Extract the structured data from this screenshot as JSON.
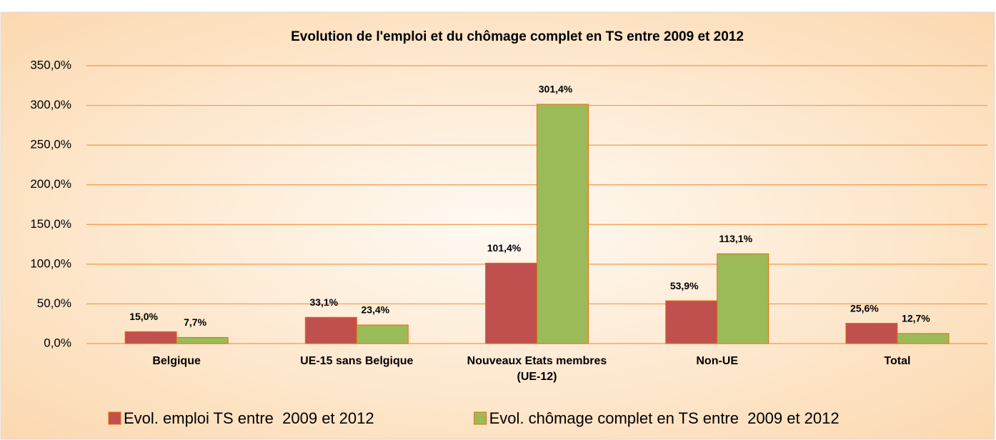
{
  "chart_data": {
    "type": "bar",
    "title": "Evolution de l'emploi et du chômage complet en TS entre 2009 et 2012",
    "categories": [
      "Belgique",
      "UE-15 sans Belgique",
      "Nouveaux Etats membres (UE-12)",
      "Non-UE",
      "Total"
    ],
    "series": [
      {
        "name": "Evol. emploi TS entre  2009 et 2012",
        "color": "#c0504d",
        "values": [
          15.0,
          33.1,
          101.4,
          53.9,
          25.6
        ],
        "value_labels": [
          "15,0%",
          "33,1%",
          "101,4%",
          "53,9%",
          "25,6%"
        ]
      },
      {
        "name": "Evol. chômage complet en TS entre  2009 et 2012",
        "color": "#9bbb59",
        "values": [
          7.7,
          23.4,
          301.4,
          113.1,
          12.7
        ],
        "value_labels": [
          "7,7%",
          "23,4%",
          "301,4%",
          "113,1%",
          "12,7%"
        ]
      }
    ],
    "ylim": [
      0,
      350
    ],
    "yticks": [
      {
        "value": 0,
        "label": "0,0%"
      },
      {
        "value": 50,
        "label": "50,0%"
      },
      {
        "value": 100,
        "label": "100,0%"
      },
      {
        "value": 150,
        "label": "150,0%"
      },
      {
        "value": 200,
        "label": "200,0%"
      },
      {
        "value": 250,
        "label": "250,0%"
      },
      {
        "value": 300,
        "label": "300,0%"
      },
      {
        "value": 350,
        "label": "350,0%"
      }
    ],
    "grid": true,
    "legend": "bottom"
  }
}
